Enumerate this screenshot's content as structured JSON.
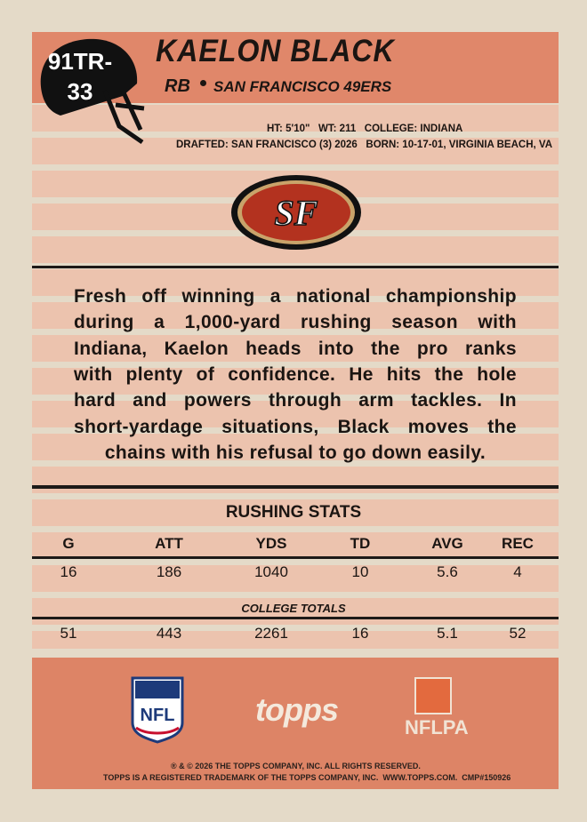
{
  "card_number": [
    "91TR-",
    "33"
  ],
  "name": "KAELON BLACK",
  "position": "RB",
  "team": "SAN FRANCISCO 49ERS",
  "bio": [
    "HT: 5'10\"   WT: 211   COLLEGE: INDIANA",
    "DRAFTED: SAN FRANCISCO (3) 2026   BORN: 10-17-01, VIRGINIA BEACH, VA"
  ],
  "team_logo": "SF",
  "blurb": [
    "Fresh off winning a national championship",
    "during a 1,000-yard rushing season with",
    "Indiana, Kaelon heads into the pro ranks",
    "with plenty of confidence. He hits the hole",
    "hard and powers through arm tackles. In",
    "short-yardage situations, Black moves the",
    "chains with his refusal to go down easily."
  ],
  "stats": {
    "title": "RUSHING STATS",
    "columns": [
      "G",
      "ATT",
      "YDS",
      "TD",
      "AVG",
      "REC"
    ],
    "pro": [
      16,
      186,
      1040,
      10,
      5.6,
      4
    ],
    "subtitle": "COLLEGE TOTALS",
    "college": [
      51,
      443,
      2261,
      16,
      5.1,
      52
    ]
  },
  "logos": {
    "nfl": "NFL",
    "topps": "topps",
    "nflpa": "NFLPA"
  },
  "legal": [
    "® & © 2026 THE TOPPS COMPANY, INC. ALL RIGHTS RESERVED.",
    "TOPPS IS A REGISTERED TRADEMARK OF THE TOPPS COMPANY, INC.  WWW.TOPPS.COM.  CMP#150926"
  ]
}
